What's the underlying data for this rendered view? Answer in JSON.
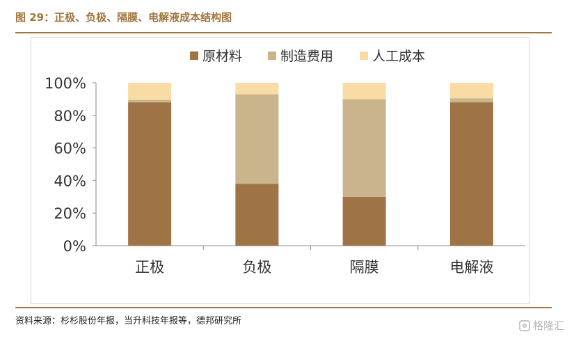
{
  "figure_title": "图 29：正极、负极、隔膜、电解液成本结构图",
  "source_note": "资料来源：杉杉股份年报，当升科技年报等，德邦研究所",
  "watermark": "格隆汇",
  "chart_data": {
    "type": "bar",
    "stacked": true,
    "categories": [
      "正极",
      "负极",
      "隔膜",
      "电解液"
    ],
    "series": [
      {
        "name": "原材料",
        "color": "#9e7446",
        "values": [
          88,
          38,
          30,
          88
        ]
      },
      {
        "name": "制造费用",
        "color": "#c9b48c",
        "values": [
          1.5,
          55,
          60,
          2.5
        ]
      },
      {
        "name": "人工成本",
        "color": "#f9dca5",
        "values": [
          10.5,
          7,
          10,
          9.5
        ]
      }
    ],
    "ylim": [
      0,
      100
    ],
    "yticks": [
      "0%",
      "20%",
      "40%",
      "60%",
      "80%",
      "100%"
    ],
    "ytick_values": [
      0,
      20,
      40,
      60,
      80,
      100
    ],
    "legend_position": "top-center",
    "grid": false
  }
}
